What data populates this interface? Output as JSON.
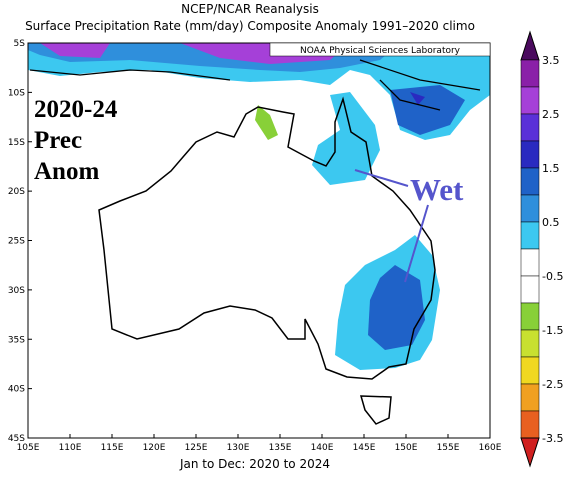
{
  "header": {
    "title": "NCEP/NCAR Reanalysis",
    "subtitle": "Surface Precipitation Rate (mm/day) Composite Anomaly 1991–2020 climo"
  },
  "map": {
    "credit": "NOAA Physical Sciences Laboratory",
    "annotation": [
      "2020-24",
      "Prec",
      "Anom"
    ],
    "callout": "Wet",
    "lat_labels": [
      "5S",
      "10S",
      "15S",
      "20S",
      "25S",
      "30S",
      "35S",
      "40S",
      "45S"
    ],
    "lon_labels": [
      "105E",
      "110E",
      "115E",
      "120E",
      "125E",
      "130E",
      "135E",
      "140E",
      "145E",
      "150E",
      "155E",
      "160E"
    ],
    "footer": "Jan to Dec: 2020 to 2024"
  },
  "colorbar": {
    "labels": [
      3.5,
      2.5,
      1.5,
      0.5,
      -0.5,
      -1.5,
      -2.5,
      -3.5
    ],
    "top_color": "#4a0a5e",
    "band_colors": [
      "#8a20a8",
      "#a540d8",
      "#5a30d8",
      "#2a2ac0",
      "#1f62c8",
      "#2f8fdc",
      "#3cc8f0",
      "#ffffff",
      "#ffffff",
      "#88d038",
      "#c8e030",
      "#f0d820",
      "#f0a020",
      "#e86020"
    ],
    "bottom_color": "#d02020"
  }
}
